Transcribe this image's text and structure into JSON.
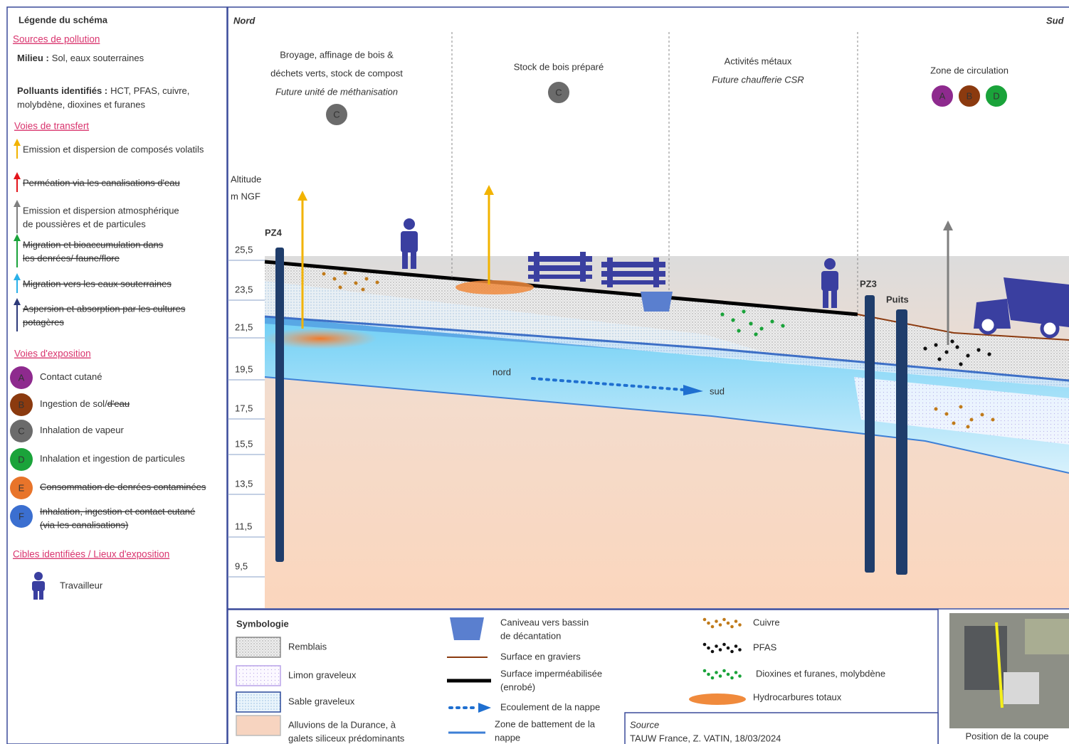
{
  "legend": {
    "title": "Légende du schéma",
    "sources_heading": "Sources de pollution",
    "milieu_label": "Milieu :",
    "milieu_text": "Sol, eaux souterraines",
    "polluants_label": "Polluants identifiés :",
    "polluants_lines": [
      "HCT, PFAS, cuivre,",
      "molybdène, dioxines et furanes"
    ],
    "transfert_heading": "Voies de transfert",
    "transfert": [
      {
        "lines": [
          "Emission et dispersion de composés volatils"
        ],
        "struck": false,
        "color": "#f2b300"
      },
      {
        "lines": [
          "Perméation via les canalisations d'eau"
        ],
        "struck": true,
        "color": "#e3141b"
      },
      {
        "lines": [
          "Emission et dispersion atmosphérique",
          "de poussières et de particules"
        ],
        "struck": false,
        "color": "#7f7f7f"
      },
      {
        "lines": [
          "Migration et bioaccumulation dans",
          "les denrées/ faune/flore"
        ],
        "struck": true,
        "color": "#1aa33a"
      },
      {
        "lines": [
          "Migration vers les eaux souterraines"
        ],
        "struck": true,
        "color": "#2ab0e8"
      },
      {
        "lines": [
          "Aspersion et absorption par les cultures",
          "potagères"
        ],
        "struck": true,
        "color": "#2d3a7a"
      }
    ],
    "exposition_heading": "Voies d'exposition",
    "exposition": [
      {
        "letter": "A",
        "color": "#8e2a8e",
        "parts": [
          {
            "text": "Contact cutané",
            "struck": false
          }
        ]
      },
      {
        "letter": "B",
        "color": "#8b3a0f",
        "parts": [
          {
            "text": "Ingestion de sol/",
            "struck": false
          },
          {
            "text": "d'eau",
            "struck": true
          }
        ]
      },
      {
        "letter": "C",
        "color": "#6b6b6b",
        "parts": [
          {
            "text": "Inhalation de vapeur",
            "struck": false
          }
        ]
      },
      {
        "letter": "D",
        "color": "#1aa33a",
        "parts": [
          {
            "text": "Inhalation et ingestion de particules",
            "struck": false
          }
        ]
      },
      {
        "letter": "E",
        "color": "#e8742a",
        "parts": [
          {
            "text": "Consommation de denrées contaminées",
            "struck": true
          }
        ]
      },
      {
        "letter": "F",
        "color": "#3b6fd0",
        "parts": [
          {
            "text": "Inhalation, ingestion et contact cutané",
            "struck": true
          },
          {
            "text": "(via les canalisations)",
            "struck": true
          }
        ]
      }
    ],
    "cibles_heading": "Cibles identifiées / Lieux d'exposition",
    "cibles": [
      "Travailleur"
    ]
  },
  "section": {
    "north": "Nord",
    "south": "Sud",
    "zones": [
      {
        "title_lines": [
          "Broyage, affinage de bois &",
          "déchets verts, stock de compost"
        ],
        "subtitle": "Future unité de méthanisation",
        "badges": [
          "C"
        ]
      },
      {
        "title_lines": [
          "Stock de bois préparé"
        ],
        "badges": [
          "C"
        ]
      },
      {
        "title_lines": [
          "Activités métaux"
        ],
        "subtitle": "Future chaufferie CSR",
        "badges": []
      },
      {
        "title_lines": [
          "Zone de circulation"
        ],
        "badges": [
          "A",
          "B",
          "D"
        ]
      }
    ],
    "altitude_label": "Altitude",
    "altitude_unit": "m NGF",
    "altitudes": [
      "25,5",
      "23,5",
      "21,5",
      "19,5",
      "17,5",
      "15,5",
      "13,5",
      "11,5",
      "9,5"
    ],
    "wells": [
      "PZ4",
      "PZ3",
      "Puits"
    ],
    "flow_from": "nord",
    "flow_to": "sud"
  },
  "symbology": {
    "title": "Symbologie",
    "layers": [
      {
        "lines": [
          "Remblais"
        ],
        "fill": "url(#pRemblai)",
        "stroke": "#888"
      },
      {
        "lines": [
          "Limon graveleux"
        ],
        "fill": "url(#pLimon)",
        "stroke": "#b9a3e8"
      },
      {
        "lines": [
          "Sable graveleux"
        ],
        "fill": "url(#pSable)",
        "stroke": "#2c4a9a"
      },
      {
        "lines": [
          "Alluvions de la Durance, à",
          "galets siliceux prédominants"
        ],
        "fill": "#f7d4c0",
        "stroke": "#bbb"
      }
    ],
    "lines_items": [
      {
        "lines": [
          "Caniveau vers bassin",
          "de décantation"
        ]
      },
      {
        "lines": [
          "Surface en graviers"
        ]
      },
      {
        "lines": [
          "Surface imperméabilisée",
          "(enrobé)"
        ]
      },
      {
        "lines": [
          "Ecoulement de la nappe"
        ]
      },
      {
        "lines": [
          "Zone de battement de la",
          "nappe"
        ]
      }
    ],
    "pollutants": [
      {
        "lines": [
          "Cuivre"
        ],
        "color": "#c07a1a"
      },
      {
        "lines": [
          "PFAS"
        ],
        "color": "#111"
      },
      {
        "lines": [
          "Dioxines et furanes, molybdène"
        ],
        "color": "#1aa33a"
      },
      {
        "lines": [
          "Hydrocarbures totaux"
        ],
        "color": "#f08a3c"
      }
    ]
  },
  "source": {
    "label": "Source",
    "text": "TAUW France, Z. VATIN, 18/03/2024"
  },
  "map_caption": "Position de la coupe"
}
